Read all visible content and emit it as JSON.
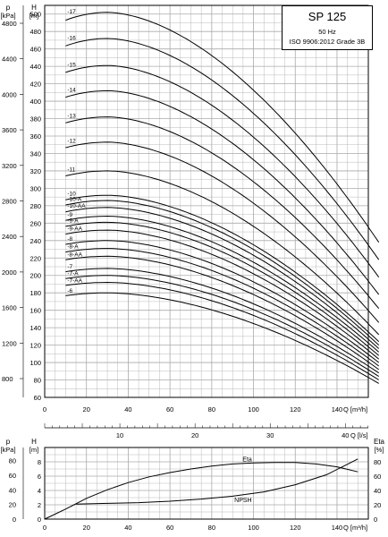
{
  "info": {
    "title": "SP 125",
    "freq": "50 Hz",
    "standard": "ISO 9906:2012 Grade 3B"
  },
  "chart_data": [
    {
      "type": "line",
      "name": "head",
      "xlabel": "Q [m³/h]",
      "xlabel_secondary": "Q [l/s]",
      "ylabel_primary_unit": "H",
      "ylabel_primary": "[m]",
      "ylabel_secondary_unit": "p",
      "ylabel_secondary": "[kPa]",
      "xlim": [
        0,
        155
      ],
      "ylim": [
        60,
        510
      ],
      "x_ticks": [
        0,
        20,
        40,
        60,
        80,
        100,
        120,
        140
      ],
      "x_ticks_ls": [
        10,
        20,
        30,
        40
      ],
      "y_ticks": [
        60,
        80,
        100,
        120,
        140,
        160,
        180,
        200,
        220,
        240,
        260,
        280,
        300,
        320,
        340,
        360,
        380,
        400,
        420,
        440,
        460,
        480,
        500
      ],
      "y_ticks_kpa": [
        800,
        1200,
        1600,
        2000,
        2400,
        2800,
        3200,
        3600,
        4000,
        4400,
        4800
      ],
      "grid": true,
      "series": [
        {
          "name": "-17",
          "shutoff": 502,
          "end": 238
        },
        {
          "name": "-16",
          "shutoff": 472,
          "end": 218
        },
        {
          "name": "-15",
          "shutoff": 441,
          "end": 198
        },
        {
          "name": "-14",
          "shutoff": 412,
          "end": 178
        },
        {
          "name": "-13",
          "shutoff": 382,
          "end": 162
        },
        {
          "name": "-12",
          "shutoff": 353,
          "end": 146
        },
        {
          "name": "-11",
          "shutoff": 320,
          "end": 132
        },
        {
          "name": "-10",
          "shutoff": 292,
          "end": 124
        },
        {
          "name": "-10-A",
          "shutoff": 286,
          "end": 120
        },
        {
          "name": "-10-AA",
          "shutoff": 278,
          "end": 116
        },
        {
          "name": "-9",
          "shutoff": 268,
          "end": 112
        },
        {
          "name": "-9-A",
          "shutoff": 261,
          "end": 108
        },
        {
          "name": "-9-AA",
          "shutoff": 252,
          "end": 104
        },
        {
          "name": "-8",
          "shutoff": 240,
          "end": 100
        },
        {
          "name": "-8-A",
          "shutoff": 231,
          "end": 96
        },
        {
          "name": "-8-AA",
          "shutoff": 222,
          "end": 92
        },
        {
          "name": "-7",
          "shutoff": 208,
          "end": 88
        },
        {
          "name": "-7-A",
          "shutoff": 200,
          "end": 84
        },
        {
          "name": "-7-AA",
          "shutoff": 192,
          "end": 80
        },
        {
          "name": "-6",
          "shutoff": 180,
          "end": 76
        }
      ]
    },
    {
      "type": "line",
      "name": "efficiency-npsh",
      "xlabel": "Q [m³/h]",
      "ylabel_left_unit": "H",
      "ylabel_left": "[m]",
      "ylabel_far_left_unit": "p",
      "ylabel_far_left": "[kPa]",
      "ylabel_right_unit": "Eta",
      "ylabel_right": "[%]",
      "xlim": [
        0,
        155
      ],
      "ylim": [
        0,
        10
      ],
      "x_ticks": [
        0,
        20,
        40,
        60,
        80,
        100,
        120,
        140
      ],
      "y_ticks_m": [
        0,
        2,
        4,
        6,
        8
      ],
      "y_ticks_kpa": [
        0,
        20,
        40,
        60,
        80
      ],
      "y_ticks_pct": [
        0,
        20,
        40,
        60,
        80
      ],
      "grid": true,
      "series": [
        {
          "name": "Eta",
          "x": [
            0,
            10,
            20,
            30,
            40,
            50,
            60,
            70,
            80,
            90,
            100,
            110,
            120,
            130,
            140,
            150
          ],
          "y": [
            0,
            14,
            29,
            41,
            51,
            59,
            65,
            70,
            74,
            77,
            78.5,
            79,
            79,
            77,
            73,
            66
          ]
        },
        {
          "name": "NPSH",
          "x": [
            15,
            30,
            45,
            60,
            75,
            90,
            105,
            120,
            135,
            150
          ],
          "y": [
            2.1,
            2.2,
            2.3,
            2.5,
            2.8,
            3.2,
            3.8,
            4.8,
            6.2,
            8.4
          ]
        }
      ]
    }
  ]
}
